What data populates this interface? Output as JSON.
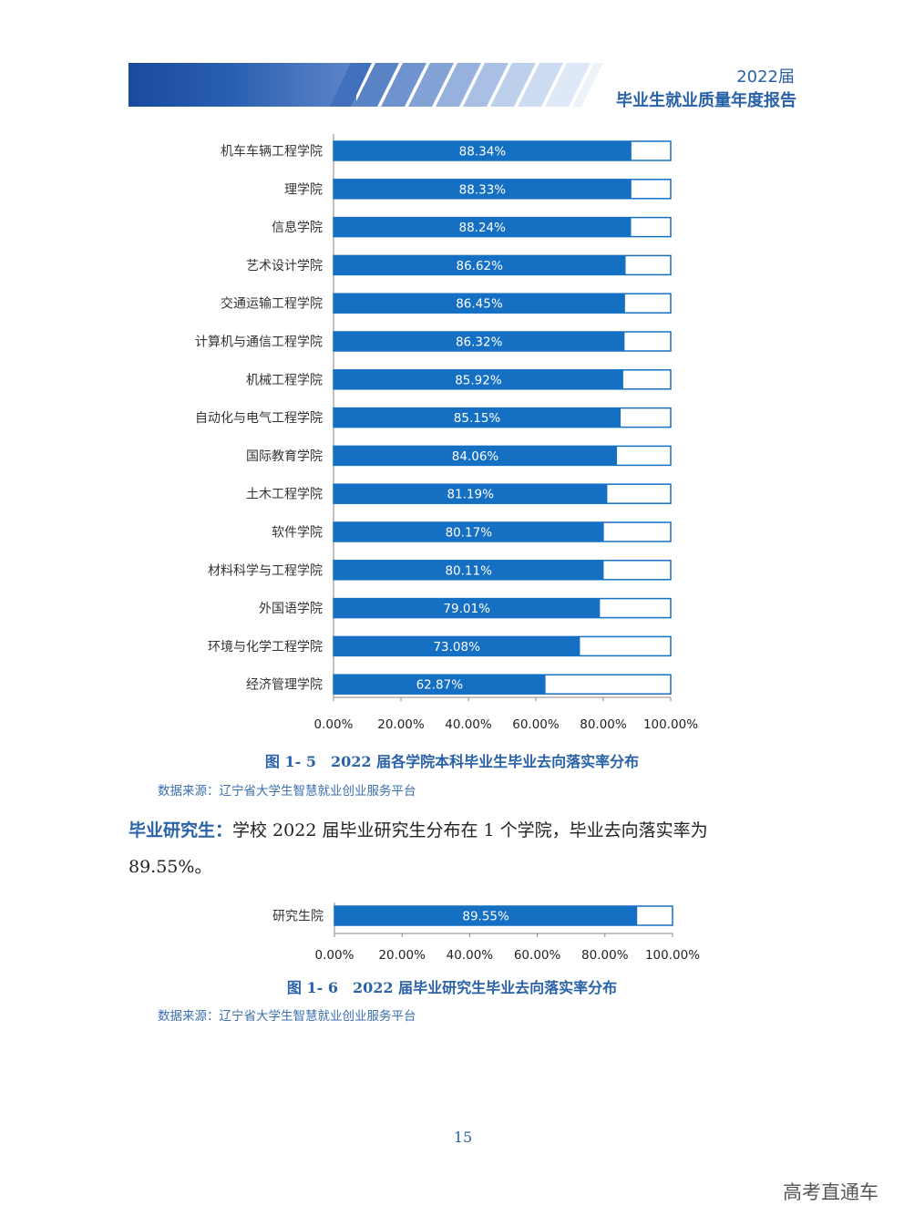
{
  "header": {
    "year_label": "2022届",
    "report_title": "毕业生就业质量年度报告"
  },
  "chart_data": [
    {
      "type": "bar",
      "orientation": "horizontal",
      "categories": [
        "机车车辆工程学院",
        "理学院",
        "信息学院",
        "艺术设计学院",
        "交通运输工程学院",
        "计算机与通信工程学院",
        "机械工程学院",
        "自动化与电气工程学院",
        "国际教育学院",
        "土木工程学院",
        "软件学院",
        "材料科学与工程学院",
        "外国语学院",
        "环境与化学工程学院",
        "经济管理学院"
      ],
      "values": [
        88.34,
        88.33,
        88.24,
        86.62,
        86.45,
        86.32,
        85.92,
        85.15,
        84.06,
        81.19,
        80.17,
        80.11,
        79.01,
        73.08,
        62.87
      ],
      "value_labels": [
        "88.34%",
        "88.33%",
        "88.24%",
        "86.62%",
        "86.45%",
        "86.32%",
        "85.92%",
        "85.15%",
        "84.06%",
        "81.19%",
        "80.17%",
        "80.11%",
        "79.01%",
        "73.08%",
        "62.87%"
      ],
      "xlim": [
        0,
        100
      ],
      "xticks": [
        "0.00%",
        "20.00%",
        "40.00%",
        "60.00%",
        "80.00%",
        "100.00%"
      ],
      "grid": false,
      "bar_color": "#1570c4",
      "remainder_fill": "#ffffff",
      "caption": "图 1- 5　2022 届各学院本科毕业生毕业去向落实率分布",
      "source": "数据来源：辽宁省大学生智慧就业创业服务平台"
    },
    {
      "type": "bar",
      "orientation": "horizontal",
      "categories": [
        "研究生院"
      ],
      "values": [
        89.55
      ],
      "value_labels": [
        "89.55%"
      ],
      "xlim": [
        0,
        100
      ],
      "xticks": [
        "0.00%",
        "20.00%",
        "40.00%",
        "60.00%",
        "80.00%",
        "100.00%"
      ],
      "grid": false,
      "bar_color": "#1570c4",
      "remainder_fill": "#ffffff",
      "caption": "图 1- 6　2022 届毕业研究生毕业去向落实率分布",
      "source": "数据来源：辽宁省大学生智慧就业创业服务平台"
    }
  ],
  "paragraph": {
    "lead": "毕业研究生：",
    "text": "学校 2022 届毕业研究生分布在 1 个学院，毕业去向落实率为 89.55%。"
  },
  "page_number": "15",
  "watermark": "高考直通车"
}
